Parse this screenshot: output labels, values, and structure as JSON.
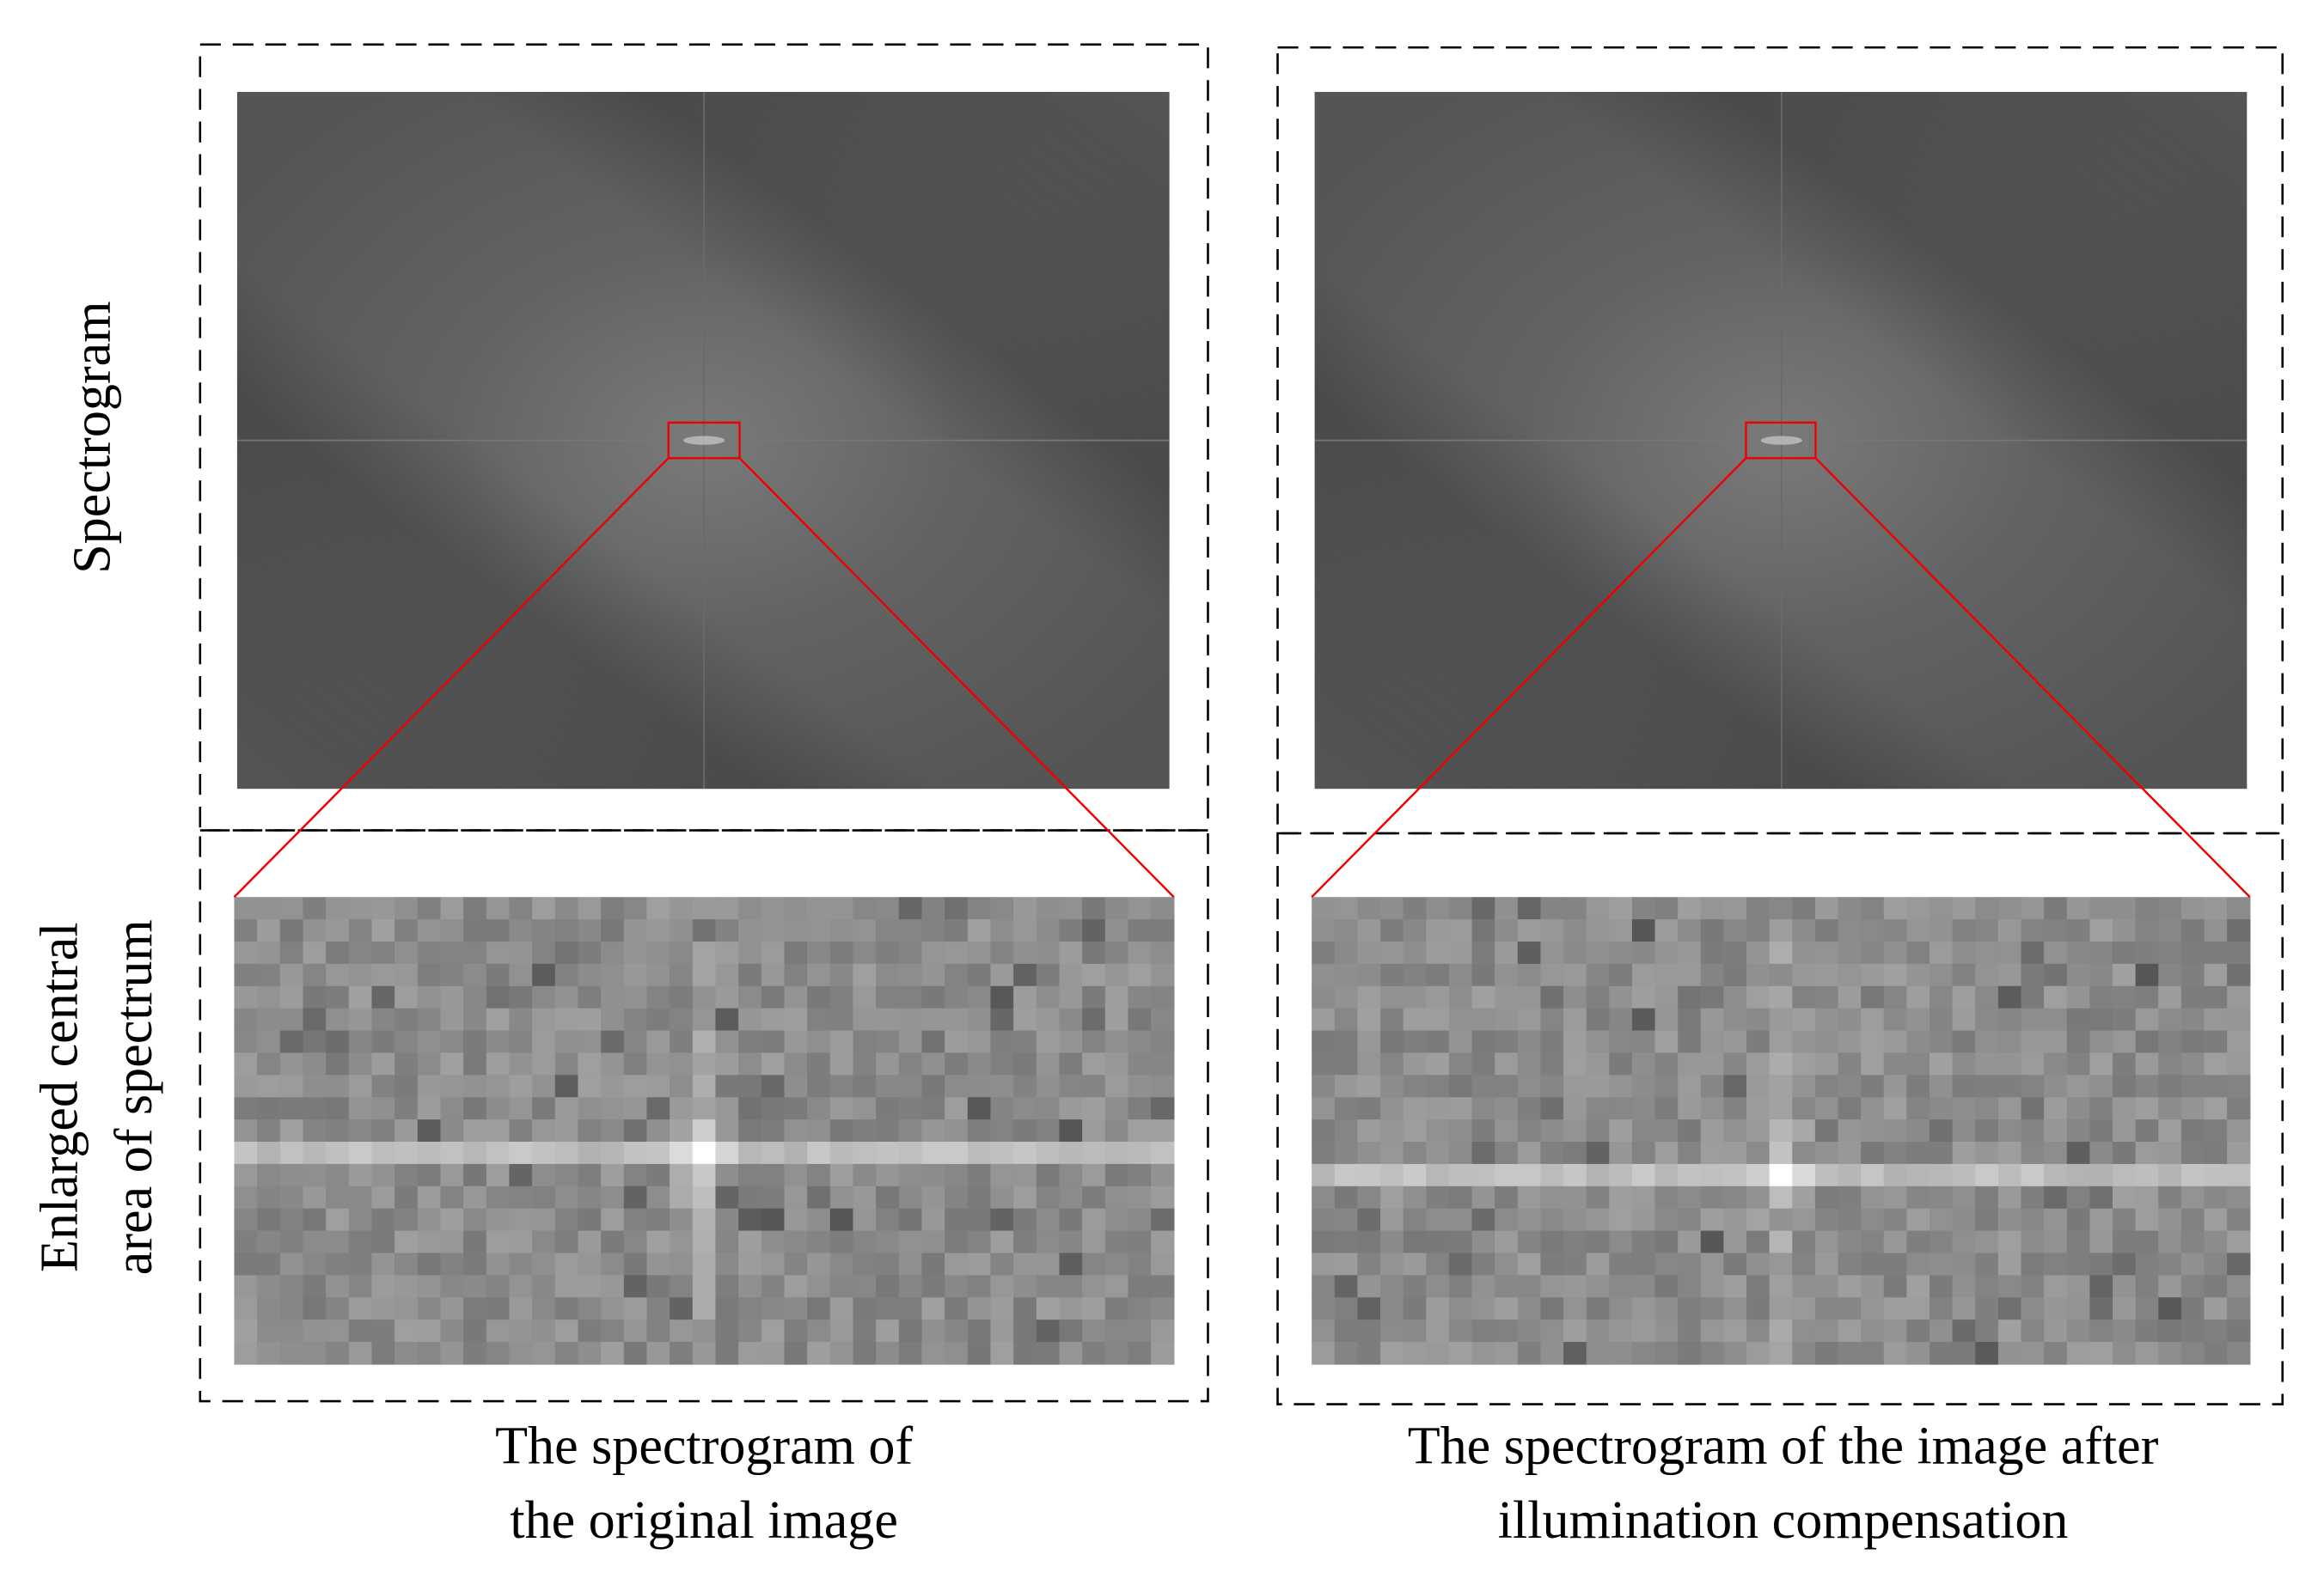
{
  "row_labels": {
    "top": "Spectrogram",
    "bottom": [
      "Enlarged central",
      "area of spectrum"
    ]
  },
  "captions": [
    {
      "lines": [
        "The spectrogram of",
        "the original image"
      ]
    },
    {
      "lines": [
        "The spectrogram of the image after",
        "illumination compensation"
      ]
    }
  ]
}
